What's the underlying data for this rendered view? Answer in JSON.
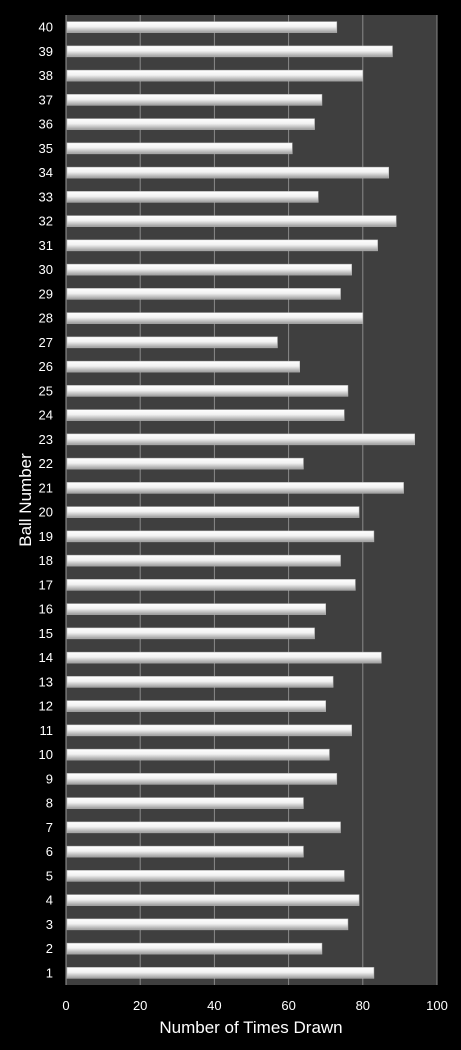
{
  "chart_data": {
    "type": "bar",
    "orientation": "horizontal",
    "xlabel": "Number of Times Drawn",
    "ylabel": "Ball Number",
    "xlim": [
      0,
      100
    ],
    "x_ticks": [
      "0",
      "20",
      "40",
      "60",
      "80",
      "100"
    ],
    "grid": true,
    "background_color": "#000000",
    "plot_color": "#3f3f3f",
    "grid_color": "#8a8a8a",
    "bar_color": "#e6e6e6",
    "categories": [
      "1",
      "2",
      "3",
      "4",
      "5",
      "6",
      "7",
      "8",
      "9",
      "10",
      "11",
      "12",
      "13",
      "14",
      "15",
      "16",
      "17",
      "18",
      "19",
      "20",
      "21",
      "22",
      "23",
      "24",
      "25",
      "26",
      "27",
      "28",
      "29",
      "30",
      "31",
      "32",
      "33",
      "34",
      "35",
      "36",
      "37",
      "38",
      "39",
      "40"
    ],
    "values": [
      83,
      69,
      76,
      79,
      75,
      64,
      74,
      64,
      73,
      71,
      77,
      70,
      72,
      85,
      67,
      70,
      78,
      74,
      83,
      79,
      91,
      64,
      94,
      75,
      76,
      63,
      57,
      80,
      74,
      77,
      84,
      89,
      68,
      87,
      61,
      67,
      69,
      80,
      88,
      73
    ]
  }
}
